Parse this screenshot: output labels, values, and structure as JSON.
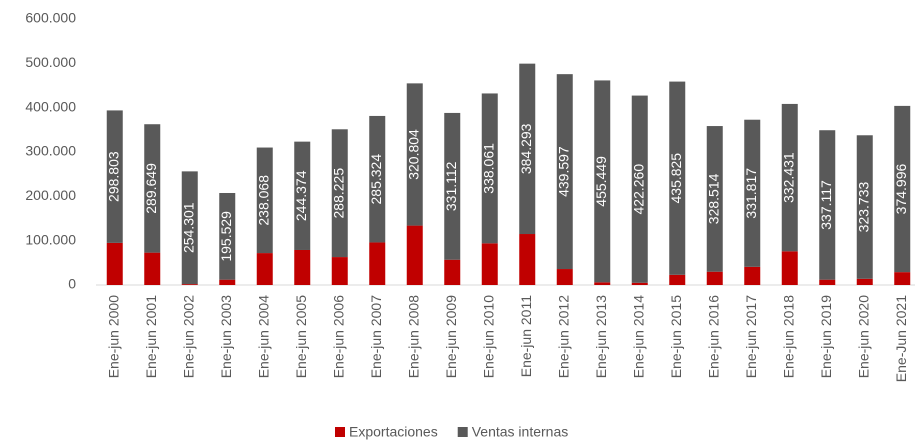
{
  "chart_data": {
    "type": "stacked_bar",
    "categories": [
      "Ene-jun 2000",
      "Ene-jun 2001",
      "Ene-jun 2002",
      "Ene-jun 2003",
      "Ene-jun 2004",
      "Ene-jun 2005",
      "Ene-jun 2006",
      "Ene-jun 2007",
      "Ene-jun 2008",
      "Ene-jun 2009",
      "Ene-jun 2010",
      "Ene-jun 2011",
      "Ene-jun 2012",
      "Ene-jun 2013",
      "Ene-jun 2014",
      "Ene-jun 2015",
      "Ene-jun 2016",
      "Ene-jun 2017",
      "Ene-jun 2018",
      "Ene-jun 2019",
      "Ene-jun 2020",
      "Ene-Jun 2021"
    ],
    "series": [
      {
        "name": "Exportaciones",
        "color": "#c00000",
        "values": [
          95000,
          73000,
          2000,
          12000,
          72000,
          79000,
          63000,
          96000,
          134000,
          57000,
          94000,
          115000,
          36000,
          6000,
          5000,
          23000,
          30000,
          41000,
          76000,
          12000,
          14000,
          29000
        ]
      },
      {
        "name": "Ventas internas",
        "color": "#595959",
        "values": [
          298803,
          289649,
          254301,
          195529,
          238068,
          244374,
          288225,
          285324,
          320804,
          331112,
          338061,
          384293,
          439597,
          455449,
          422260,
          435825,
          328514,
          331817,
          332431,
          337117,
          323733,
          374996
        ],
        "value_labels": [
          "298.803",
          "289.649",
          "254.301",
          "195.529",
          "238.068",
          "244.374",
          "288.225",
          "285.324",
          "320.804",
          "331.112",
          "338.061",
          "384.293",
          "439.597",
          "455.449",
          "422.260",
          "435.825",
          "328.514",
          "331.817",
          "332.431",
          "337.117",
          "323.733",
          "374.996"
        ]
      }
    ],
    "ylim": [
      0,
      600000
    ],
    "yticks": [
      0,
      {
        "value": 100000,
        "label": "100.000"
      },
      {
        "value": 200000,
        "label": "200.000"
      },
      {
        "value": 300000,
        "label": "300.000"
      },
      {
        "value": 400000,
        "label": "400.000"
      },
      {
        "value": 500000,
        "label": "500.000"
      },
      {
        "value": 600000,
        "label": "600.000"
      }
    ],
    "legend": "bottom"
  }
}
